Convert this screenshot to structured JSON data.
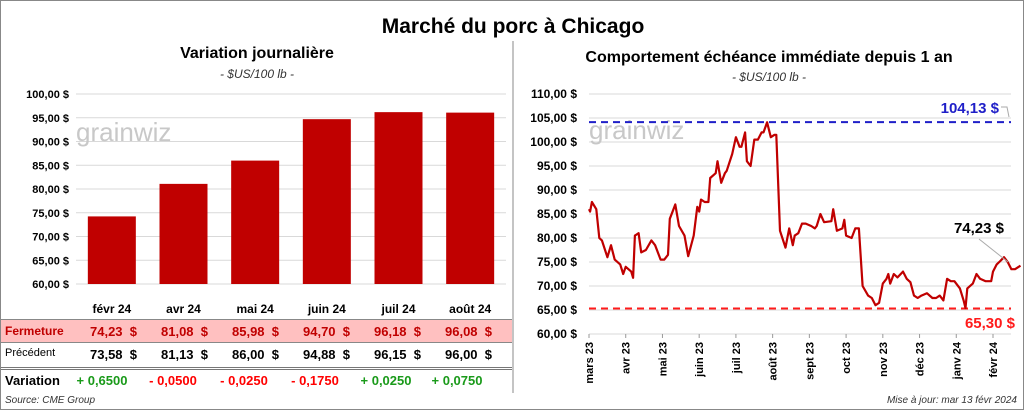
{
  "title": "Marché du porc à Chicago",
  "left": {
    "subtitle": "Variation journalière",
    "unit": "- $US/100 lb -",
    "watermark": "grainwiz"
  },
  "right": {
    "subtitle": "Comportement  échéance immédiate depuis 1 an",
    "unit": "- $US/100 lb -",
    "watermark": "grainwiz"
  },
  "table": {
    "rows": [
      {
        "label": "Fermeture",
        "values": [
          "74,23  $",
          "81,08  $",
          "85,98  $",
          "94,70  $",
          "96,18  $",
          "96,08  $"
        ]
      },
      {
        "label": "Précédent",
        "values": [
          "73,58  $",
          "81,13  $",
          "86,00  $",
          "94,88  $",
          "96,15  $",
          "96,00  $"
        ]
      },
      {
        "label": "Variation",
        "values": [
          "+ 0,6500",
          "- 0,0500",
          "- 0,0250",
          "- 0,1750",
          "+ 0,0250",
          "+ 0,0750"
        ]
      }
    ],
    "variation_signs": [
      "up",
      "down",
      "down",
      "down",
      "up",
      "up"
    ]
  },
  "source": "Source: CME Group",
  "updated": "Mise à jour: mar 13 févr 2024",
  "colors": {
    "bar": "#c00000",
    "line": "#c00000",
    "high": "#1f1fc8",
    "low": "#ff1a1a",
    "pink": "#ffc0c0",
    "up": "#1a9a1a",
    "down": "#ff0000"
  },
  "chart_data": [
    {
      "type": "bar",
      "title": "Variation journalière",
      "ylabel": "$US/100 lb",
      "categories": [
        "févr 24",
        "avr 24",
        "mai 24",
        "juin 24",
        "juil 24",
        "août 24"
      ],
      "values": [
        74.23,
        81.08,
        85.98,
        94.7,
        96.18,
        96.08
      ],
      "ylim": [
        60,
        100
      ],
      "yticks": [
        "60,00 $",
        "65,00 $",
        "70,00 $",
        "75,00 $",
        "80,00 $",
        "85,00 $",
        "90,00 $",
        "95,00 $",
        "100,00 $"
      ],
      "grid": true
    },
    {
      "type": "line",
      "title": "Comportement  échéance immédiate depuis 1 an",
      "ylim": [
        60,
        110
      ],
      "yticks": [
        "60,00 $",
        "65,00 $",
        "70,00 $",
        "75,00 $",
        "80,00 $",
        "85,00 $",
        "90,00 $",
        "95,00 $",
        "100,00 $",
        "105,00 $",
        "110,00 $"
      ],
      "xticks": [
        "mars 23",
        "avr 23",
        "mai 23",
        "juin 23",
        "juil 23",
        "août 23",
        "sept 23",
        "oct 23",
        "nov 23",
        "déc 23",
        "janv 24",
        "févr 24"
      ],
      "x_unit": "months since mars 23",
      "high": {
        "value": 104.13,
        "label": "104,13 $"
      },
      "low": {
        "value": 65.3,
        "label": "65,30 $"
      },
      "last": {
        "value": 74.23,
        "label": "74,23 $"
      },
      "series": [
        {
          "name": "Échéance immédiate",
          "points": [
            [
              0,
              86
            ],
            [
              0.03,
              85.5
            ],
            [
              0.08,
              87.5
            ],
            [
              0.2,
              86
            ],
            [
              0.28,
              80
            ],
            [
              0.35,
              79.5
            ],
            [
              0.5,
              76
            ],
            [
              0.6,
              78.5
            ],
            [
              0.7,
              75.5
            ],
            [
              0.85,
              74.5
            ],
            [
              0.93,
              72.5
            ],
            [
              1.0,
              74
            ],
            [
              1.15,
              73
            ],
            [
              1.2,
              71.7
            ],
            [
              1.25,
              80.5
            ],
            [
              1.35,
              81
            ],
            [
              1.42,
              77
            ],
            [
              1.55,
              77.5
            ],
            [
              1.7,
              79.5
            ],
            [
              1.8,
              78.5
            ],
            [
              1.95,
              75.5
            ],
            [
              2.05,
              75.5
            ],
            [
              2.15,
              76.5
            ],
            [
              2.2,
              84
            ],
            [
              2.3,
              86
            ],
            [
              2.35,
              87
            ],
            [
              2.45,
              82.5
            ],
            [
              2.6,
              80.5
            ],
            [
              2.7,
              76.2
            ],
            [
              2.85,
              80.5
            ],
            [
              2.95,
              86.5
            ],
            [
              3.0,
              85.5
            ],
            [
              3.05,
              88
            ],
            [
              3.15,
              87.5
            ],
            [
              3.25,
              87.5
            ],
            [
              3.3,
              92.5
            ],
            [
              3.45,
              93.5
            ],
            [
              3.5,
              96
            ],
            [
              3.6,
              91.5
            ],
            [
              3.7,
              93.5
            ],
            [
              3.75,
              94
            ],
            [
              3.9,
              97.5
            ],
            [
              4.0,
              101
            ],
            [
              4.1,
              99
            ],
            [
              4.15,
              99
            ],
            [
              4.25,
              102
            ],
            [
              4.3,
              96
            ],
            [
              4.4,
              95
            ],
            [
              4.5,
              100.5
            ],
            [
              4.6,
              100.5
            ],
            [
              4.7,
              102
            ],
            [
              4.75,
              102
            ],
            [
              4.85,
              104.1
            ],
            [
              4.95,
              101
            ],
            [
              5.05,
              101.5
            ],
            [
              5.1,
              101.5
            ],
            [
              5.2,
              81.5
            ],
            [
              5.35,
              78
            ],
            [
              5.45,
              82
            ],
            [
              5.55,
              78.5
            ],
            [
              5.6,
              80.5
            ],
            [
              5.7,
              81
            ],
            [
              5.8,
              83
            ],
            [
              5.9,
              83
            ],
            [
              6.05,
              82.5
            ],
            [
              6.15,
              82
            ],
            [
              6.2,
              82.5
            ],
            [
              6.3,
              85
            ],
            [
              6.4,
              83.3
            ],
            [
              6.6,
              83.5
            ],
            [
              6.65,
              86
            ],
            [
              6.75,
              81.5
            ],
            [
              6.9,
              82
            ],
            [
              6.95,
              83.8
            ],
            [
              7.0,
              80.5
            ],
            [
              7.15,
              80
            ],
            [
              7.25,
              82
            ],
            [
              7.35,
              82
            ],
            [
              7.45,
              70
            ],
            [
              7.6,
              68
            ],
            [
              7.7,
              67.5
            ],
            [
              7.8,
              66.0
            ],
            [
              7.9,
              66.5
            ],
            [
              8.0,
              70.5
            ],
            [
              8.1,
              71.5
            ],
            [
              8.15,
              72.5
            ],
            [
              8.2,
              70.5
            ],
            [
              8.3,
              72.5
            ],
            [
              8.4,
              71.8
            ],
            [
              8.55,
              73
            ],
            [
              8.65,
              71.5
            ],
            [
              8.75,
              70.8
            ],
            [
              8.85,
              68
            ],
            [
              8.95,
              67.5
            ],
            [
              9.05,
              68
            ],
            [
              9.2,
              68.5
            ],
            [
              9.35,
              67.5
            ],
            [
              9.45,
              67.5
            ],
            [
              9.55,
              68
            ],
            [
              9.65,
              67
            ],
            [
              9.75,
              71.5
            ],
            [
              9.85,
              71
            ],
            [
              9.95,
              71
            ],
            [
              10.1,
              69.5
            ],
            [
              10.2,
              67
            ],
            [
              10.25,
              65.4
            ],
            [
              10.3,
              69.5
            ],
            [
              10.45,
              70.5
            ],
            [
              10.55,
              72.5
            ],
            [
              10.65,
              71.5
            ],
            [
              10.8,
              71
            ],
            [
              10.95,
              71
            ],
            [
              11.0,
              73
            ],
            [
              11.1,
              74.5
            ],
            [
              11.2,
              75.2
            ],
            [
              11.3,
              76
            ],
            [
              11.4,
              75
            ],
            [
              11.5,
              73.5
            ],
            [
              11.6,
              73.5
            ],
            [
              11.7,
              74
            ],
            [
              11.75,
              74.23
            ]
          ]
        }
      ]
    }
  ]
}
